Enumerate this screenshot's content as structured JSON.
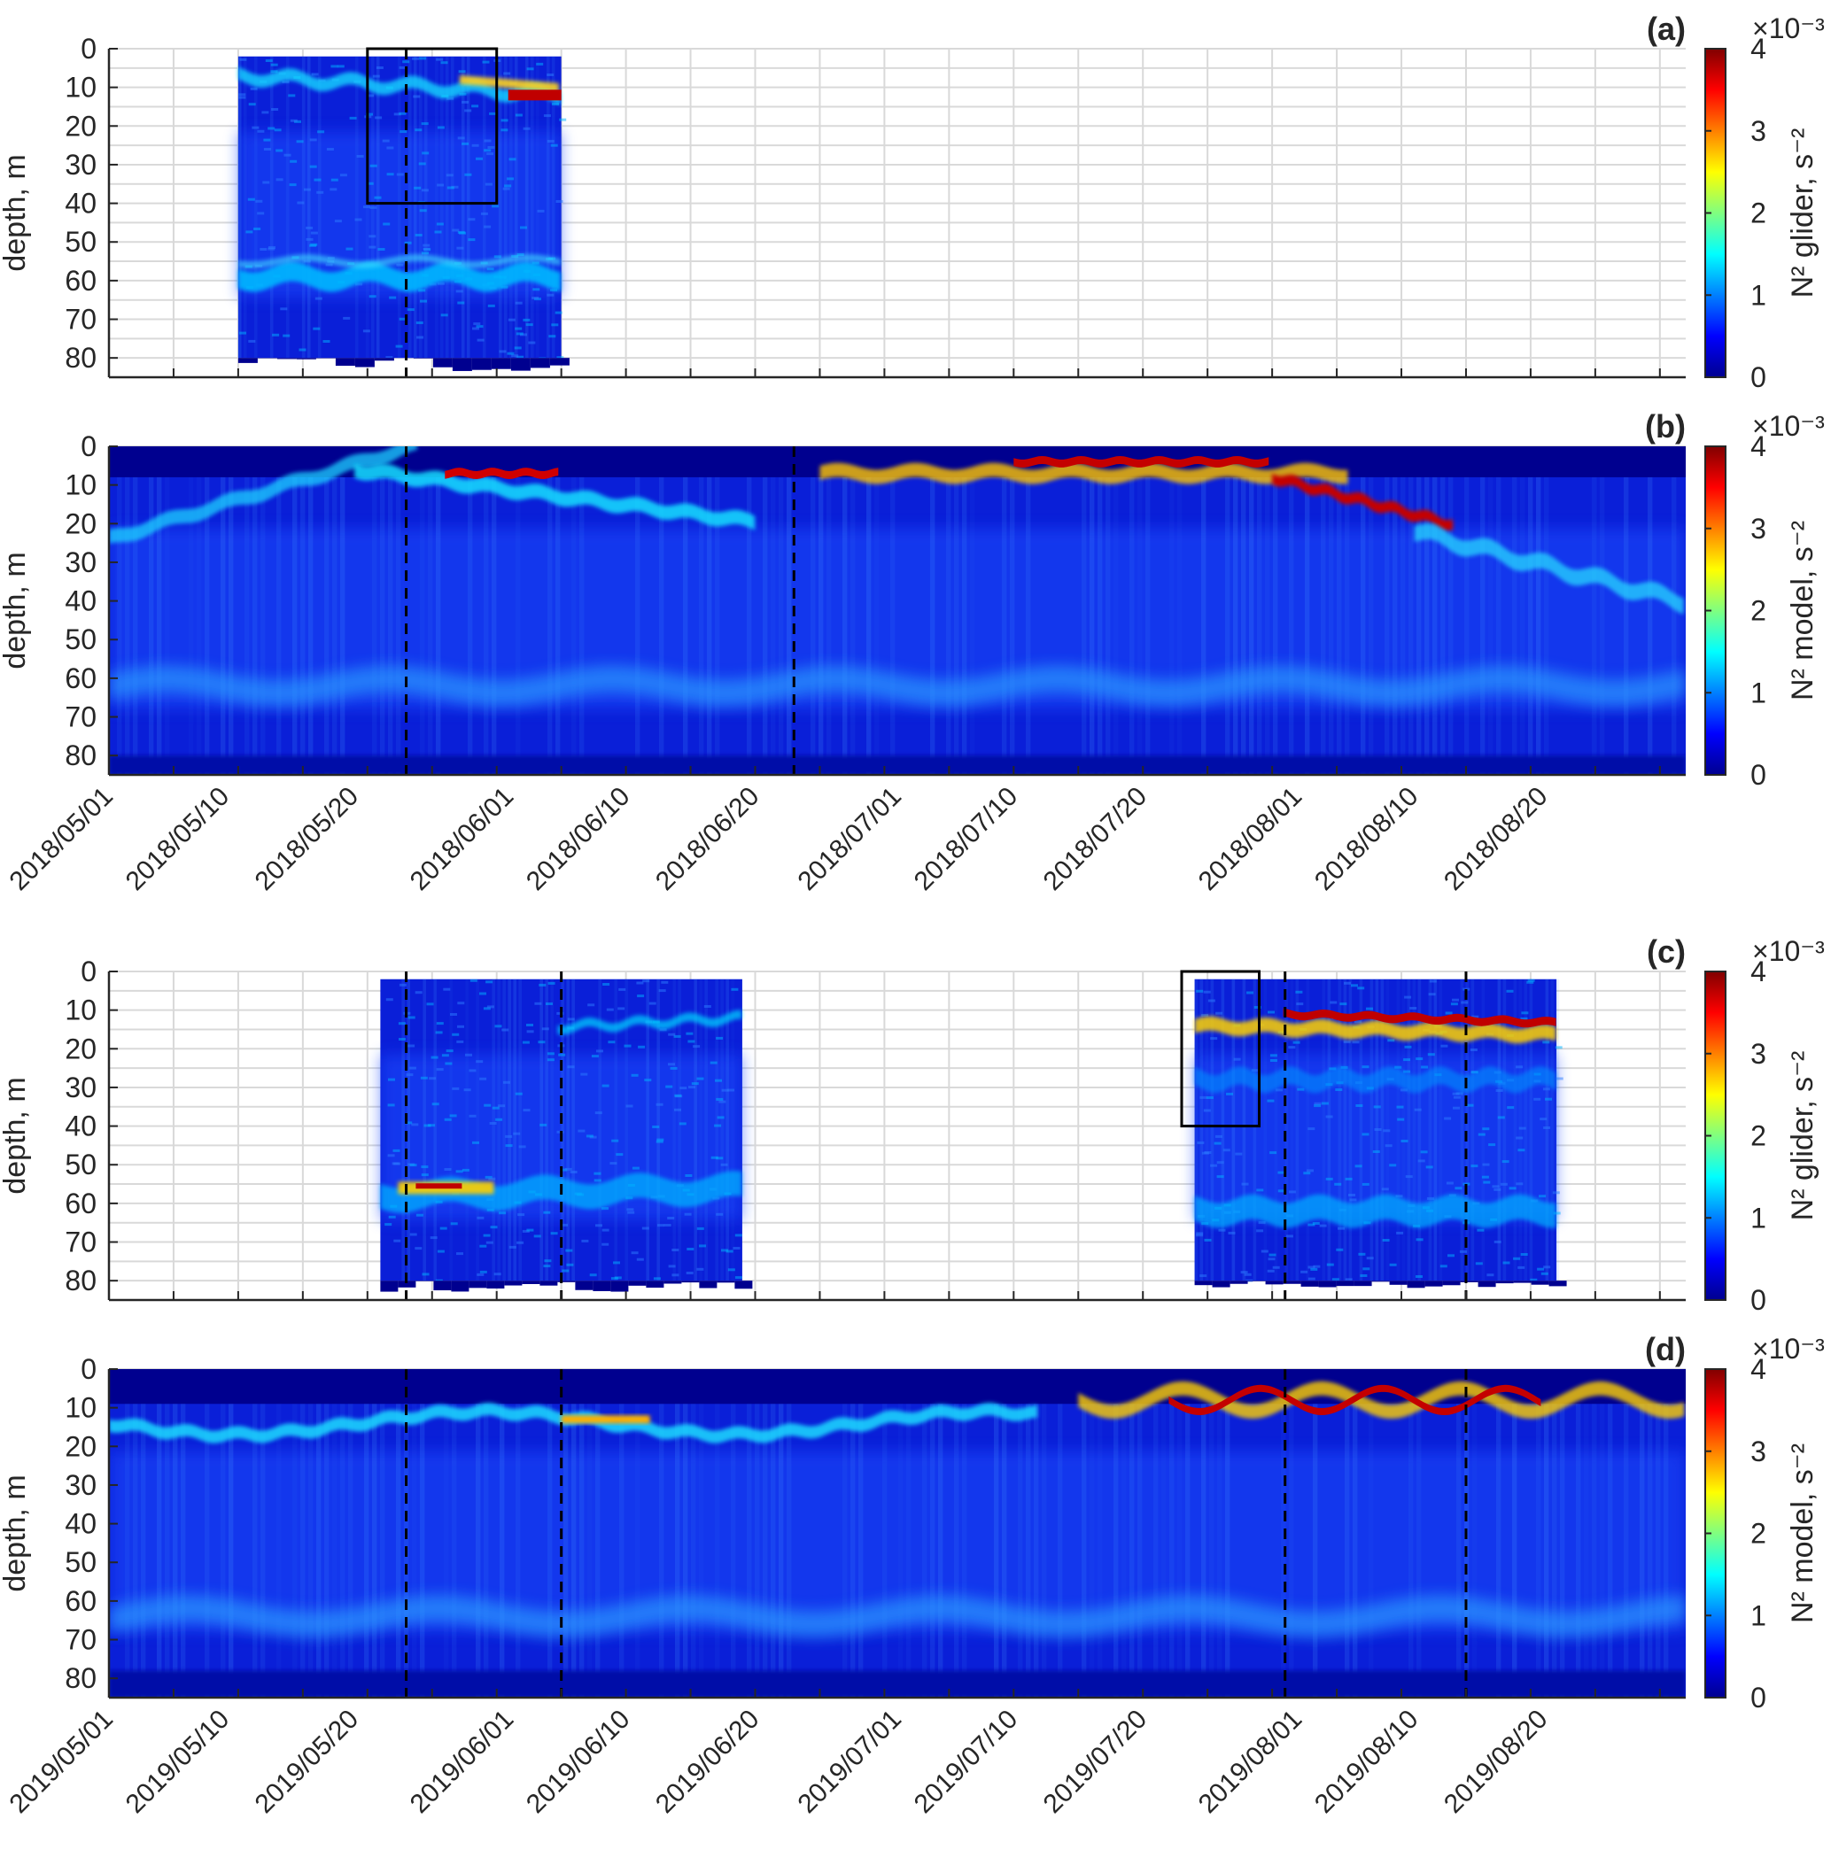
{
  "chart_data": [
    {
      "panel_label": "(a)",
      "type": "heatmap",
      "year": 2018,
      "ylabel": "depth, m",
      "colorbar_label": "N² glider, s⁻²",
      "colorbar_multiplier": "×10⁻³",
      "colorbar_ticks": [
        0,
        1,
        2,
        3,
        4
      ],
      "clim": [
        0,
        0.004
      ],
      "colormap": "jet",
      "yticks": [
        0,
        10,
        20,
        30,
        40,
        50,
        60,
        70,
        80
      ],
      "ylim": [
        0,
        85
      ],
      "xlim": [
        "2018-05-01",
        "2018-08-31"
      ],
      "data_extent": {
        "start": "2018-05-11",
        "end": "2018-06-05",
        "top_depth": 2,
        "max_depth": 84
      },
      "dashed_lines": [
        "2018-05-24"
      ],
      "boxes": [
        {
          "start": "2018-05-21",
          "end": "2018-05-31",
          "depth_top": 0,
          "depth_bottom": 40
        }
      ],
      "features": {
        "pycnocline_depth": 60,
        "surface_strat_depth": 8
      }
    },
    {
      "panel_label": "(b)",
      "type": "heatmap",
      "year": 2018,
      "ylabel": "depth, m",
      "colorbar_label": "N² model, s⁻²",
      "colorbar_multiplier": "×10⁻³",
      "colorbar_ticks": [
        0,
        1,
        2,
        3,
        4
      ],
      "clim": [
        0,
        0.004
      ],
      "colormap": "jet",
      "yticks": [
        0,
        10,
        20,
        30,
        40,
        50,
        60,
        70,
        80
      ],
      "ylim": [
        0,
        85
      ],
      "xlim": [
        "2018-05-01",
        "2018-08-31"
      ],
      "dashed_lines": [
        "2018-05-24",
        "2018-06-23"
      ],
      "xtick_labels": [
        "2018/05/01",
        "2018/05/10",
        "2018/05/20",
        "2018/06/01",
        "2018/06/10",
        "2018/06/20",
        "2018/07/01",
        "2018/07/10",
        "2018/07/20",
        "2018/08/01",
        "2018/08/10",
        "2018/08/20"
      ]
    },
    {
      "panel_label": "(c)",
      "type": "heatmap",
      "year": 2019,
      "ylabel": "depth, m",
      "colorbar_label": "N² glider, s⁻²",
      "colorbar_multiplier": "×10⁻³",
      "colorbar_ticks": [
        0,
        1,
        2,
        3,
        4
      ],
      "clim": [
        0,
        0.004
      ],
      "colormap": "jet",
      "yticks": [
        0,
        10,
        20,
        30,
        40,
        50,
        60,
        70,
        80
      ],
      "ylim": [
        0,
        85
      ],
      "xlim": [
        "2019-05-01",
        "2019-08-31"
      ],
      "data_extents": [
        {
          "start": "2019-05-22",
          "end": "2019-06-19",
          "top_depth": 2,
          "max_depth": 83
        },
        {
          "start": "2019-07-24",
          "end": "2019-08-21",
          "top_depth": 2,
          "max_depth": 82
        }
      ],
      "dashed_lines": [
        "2019-05-24",
        "2019-06-05",
        "2019-07-31",
        "2019-08-14"
      ],
      "boxes": [
        {
          "start": "2019-07-23",
          "end": "2019-07-29",
          "depth_top": 0,
          "depth_bottom": 40
        }
      ]
    },
    {
      "panel_label": "(d)",
      "type": "heatmap",
      "year": 2019,
      "ylabel": "depth, m",
      "colorbar_label": "N² model, s⁻²",
      "colorbar_multiplier": "×10⁻³",
      "colorbar_ticks": [
        0,
        1,
        2,
        3,
        4
      ],
      "clim": [
        0,
        0.004
      ],
      "colormap": "jet",
      "yticks": [
        0,
        10,
        20,
        30,
        40,
        50,
        60,
        70,
        80
      ],
      "ylim": [
        0,
        85
      ],
      "xlim": [
        "2019-05-01",
        "2019-08-31"
      ],
      "dashed_lines": [
        "2019-05-24",
        "2019-06-05",
        "2019-07-31",
        "2019-08-14"
      ],
      "xtick_labels": [
        "2019/05/01",
        "2019/05/10",
        "2019/05/20",
        "2019/06/01",
        "2019/06/10",
        "2019/06/20",
        "2019/07/01",
        "2019/07/10",
        "2019/07/20",
        "2019/08/01",
        "2019/08/10",
        "2019/08/20"
      ]
    }
  ]
}
